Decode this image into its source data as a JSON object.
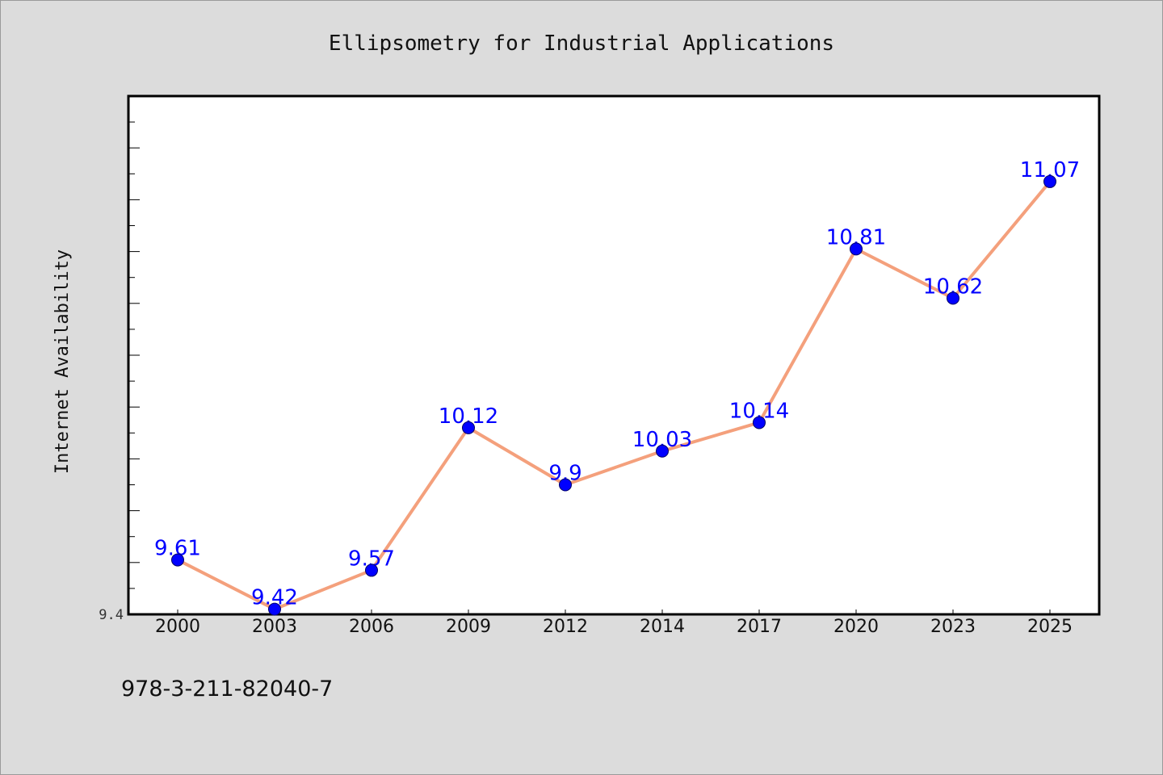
{
  "chart_data": {
    "type": "line",
    "title": "Ellipsometry for Industrial Applications",
    "xlabel": "",
    "ylabel": "Internet Availability",
    "categories": [
      "2000",
      "2003",
      "2006",
      "2009",
      "2012",
      "2014",
      "2017",
      "2020",
      "2023",
      "2025"
    ],
    "series": [
      {
        "values": [
          9.61,
          9.42,
          9.57,
          10.12,
          9.9,
          10.03,
          10.14,
          10.81,
          10.62,
          11.07
        ],
        "data_labels": [
          "9.61",
          "9.42",
          "9.57",
          "10.12",
          "9.9",
          "10.03",
          "10.14",
          "10.81",
          "10.62",
          "11.07"
        ],
        "line_color": "#f4a07c",
        "marker_color": "#0000ff"
      }
    ],
    "ylim": [
      9.4,
      11.4
    ],
    "yticks_labeled": [
      "9.4"
    ],
    "grid": false,
    "legend": "none"
  },
  "footer": {
    "isbn": "978-3-211-82040-7"
  },
  "colors": {
    "background": "#dcdcdc",
    "plot_background": "#ffffff",
    "line": "#f4a07c",
    "marker": "#0000ff",
    "label": "#0000ff"
  }
}
